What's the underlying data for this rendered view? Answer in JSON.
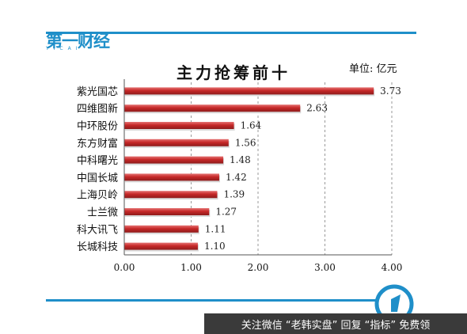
{
  "brand": {
    "name": "第一财经",
    "sub": "YICAI"
  },
  "unit_label": "单位: 亿元",
  "footer": {
    "text": "关注微信 “老韩实盘” 回复 “指标” 免费领"
  },
  "colors": {
    "bar": "#c62828",
    "bar_light": "#e57373",
    "axis": "#555555",
    "grid": "#999999",
    "brand": "#1f8fc9"
  },
  "chart_data": {
    "type": "bar",
    "orientation": "horizontal",
    "title": "主力抢筹前十",
    "categories": [
      "紫光国芯",
      "四维图新",
      "中环股份",
      "东方财富",
      "中科曙光",
      "中国长城",
      "上海贝岭",
      "士兰微",
      "科大讯飞",
      "长城科技"
    ],
    "values": [
      3.73,
      2.63,
      1.64,
      1.56,
      1.48,
      1.42,
      1.39,
      1.27,
      1.11,
      1.1
    ],
    "value_labels": [
      "3.73",
      "2.63",
      "1.64",
      "1.56",
      "1.48",
      "1.42",
      "1.39",
      "1.27",
      "1.11",
      "1.10"
    ],
    "xlim": [
      0,
      4
    ],
    "xticks": [
      "0.00",
      "1.00",
      "2.00",
      "3.00",
      "4.00"
    ],
    "xtick_values": [
      0,
      1,
      2,
      3,
      4
    ],
    "grid": true,
    "legend": "none"
  }
}
